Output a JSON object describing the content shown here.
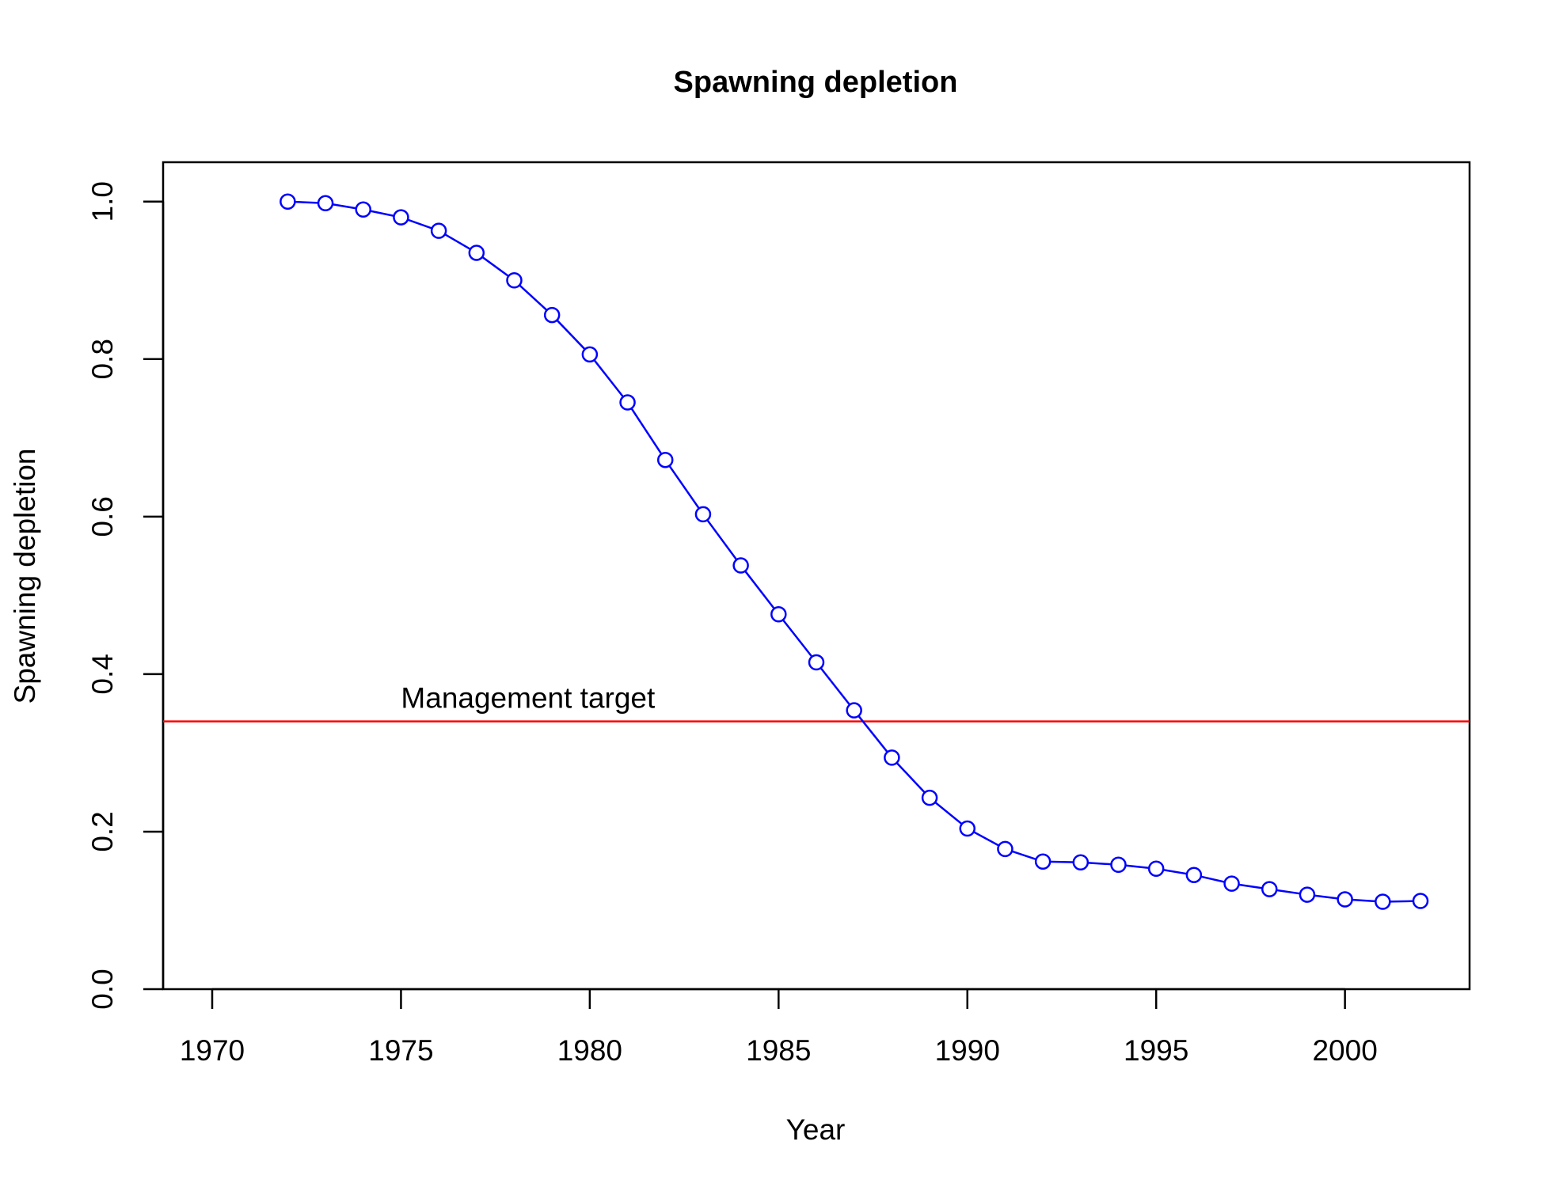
{
  "chart_data": {
    "type": "line",
    "title": "Spawning depletion",
    "xlabel": "Year",
    "ylabel": "Spawning depletion",
    "xlim": [
      1968.7,
      2003.3
    ],
    "ylim": [
      0,
      1.05
    ],
    "x_ticks": [
      1970,
      1975,
      1980,
      1985,
      1990,
      1995,
      2000
    ],
    "x_tick_labels": [
      "1970",
      "1975",
      "1980",
      "1985",
      "1990",
      "1995",
      "2000"
    ],
    "y_ticks": [
      0,
      0.2,
      0.4,
      0.6,
      0.8,
      1.0
    ],
    "y_tick_labels": [
      "0.0",
      "0.2",
      "0.4",
      "0.6",
      "0.8",
      "1.0"
    ],
    "grid": false,
    "series": [
      {
        "color": "#0000ff",
        "marker": "open-circle",
        "x": [
          1972,
          1973,
          1974,
          1975,
          1976,
          1977,
          1978,
          1979,
          1980,
          1981,
          1982,
          1983,
          1984,
          1985,
          1986,
          1987,
          1988,
          1989,
          1990,
          1991,
          1992,
          1993,
          1994,
          1995,
          1996,
          1997,
          1998,
          1999,
          2000,
          2001,
          2002
        ],
        "values": [
          1.0,
          0.998,
          0.99,
          0.98,
          0.963,
          0.935,
          0.9,
          0.856,
          0.806,
          0.745,
          0.672,
          0.603,
          0.538,
          0.476,
          0.415,
          0.354,
          0.294,
          0.243,
          0.204,
          0.178,
          0.162,
          0.161,
          0.158,
          0.153,
          0.145,
          0.134,
          0.127,
          0.12,
          0.114,
          0.111,
          0.112
        ]
      }
    ],
    "reference_line": {
      "y": 0.34,
      "color": "#ff0000",
      "label": "Management target",
      "label_x": 1975
    }
  }
}
